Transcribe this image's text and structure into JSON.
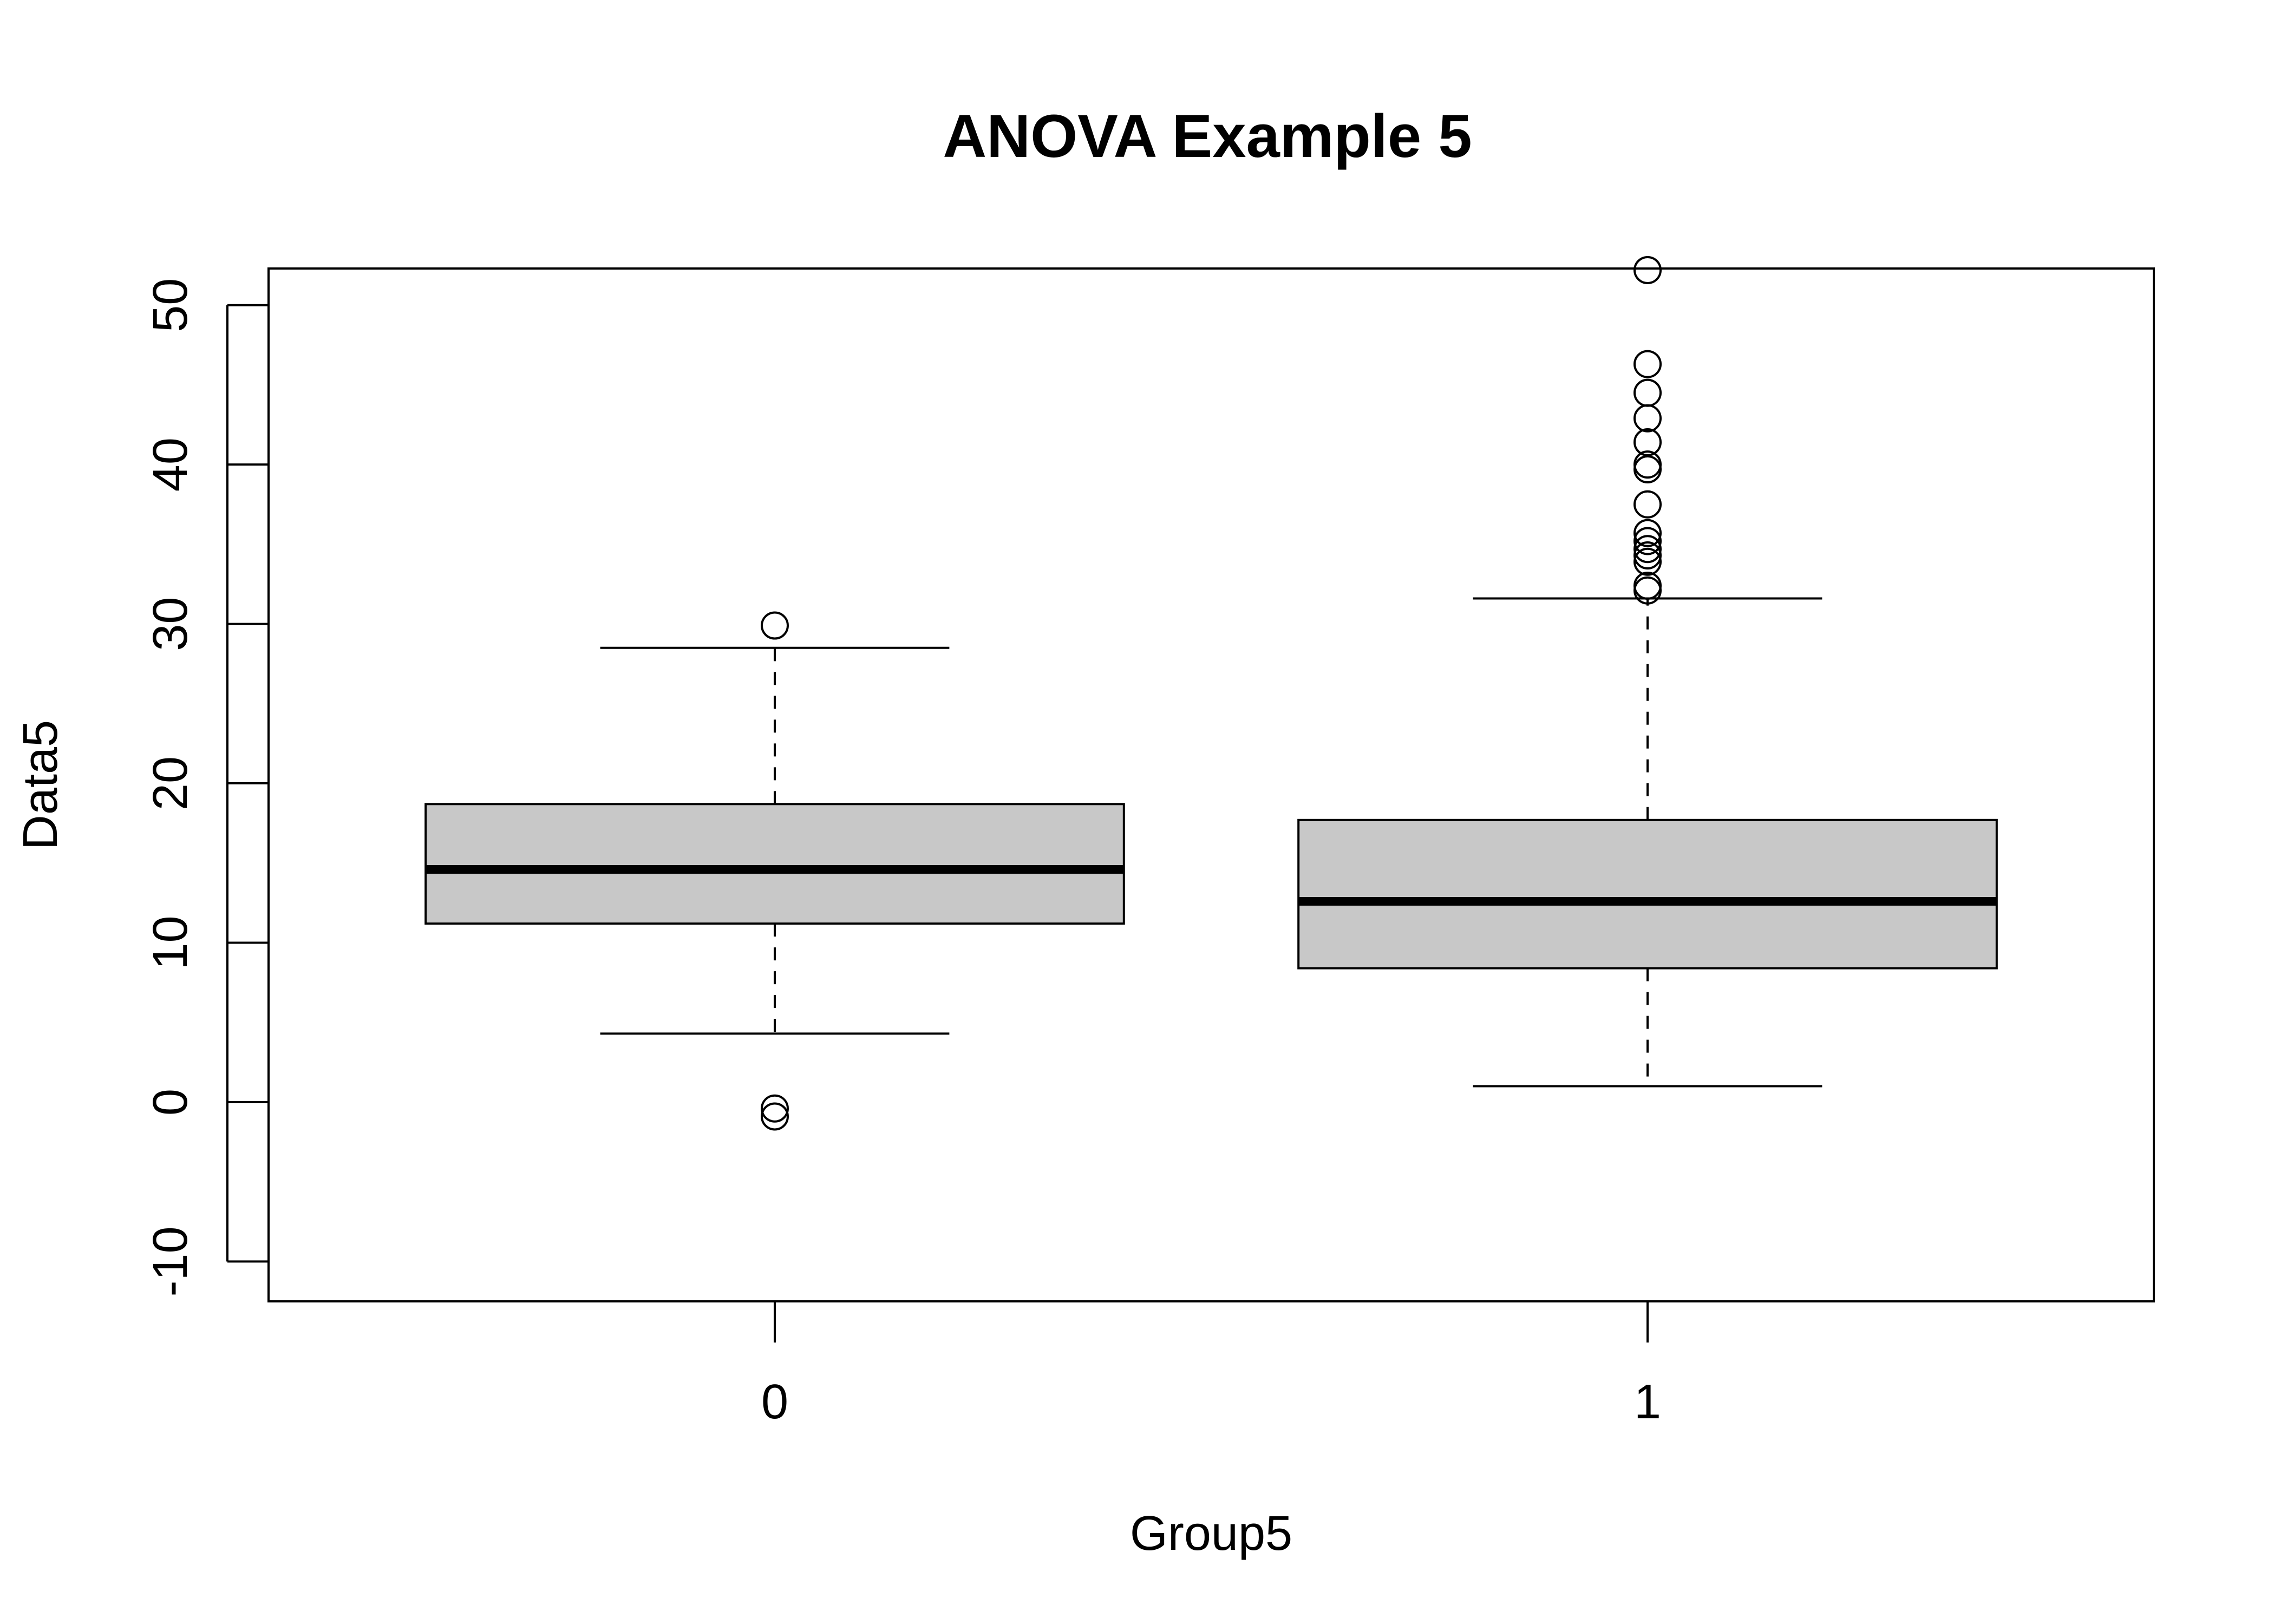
{
  "chart_data": {
    "type": "box",
    "title": "ANOVA Example 5",
    "xlabel": "Group5",
    "ylabel": "Data5",
    "categories": [
      "0",
      "1"
    ],
    "ylim": [
      -12.5,
      52.3
    ],
    "yticks": [
      -10,
      0,
      10,
      20,
      30,
      40,
      50
    ],
    "ytick_labels": [
      "-10",
      "0",
      "10",
      "20",
      "30",
      "40",
      "50"
    ],
    "grid": false,
    "box_fill": "#c8c8c8",
    "line_color": "#000000",
    "boxes": [
      {
        "group": "0",
        "whisker_low": 4.3,
        "q1": 11.2,
        "median": 14.6,
        "q3": 18.7,
        "whisker_high": 28.5,
        "outliers": [
          29.9,
          -0.4,
          -0.9
        ]
      },
      {
        "group": "1",
        "whisker_low": 1.0,
        "q1": 8.4,
        "median": 12.6,
        "q3": 17.7,
        "whisker_high": 31.6,
        "outliers": [
          52.2,
          46.3,
          44.5,
          42.9,
          41.4,
          40.0,
          39.7,
          37.5,
          35.7,
          35.2,
          34.7,
          34.3,
          33.9,
          32.4,
          32.1
        ]
      }
    ]
  }
}
